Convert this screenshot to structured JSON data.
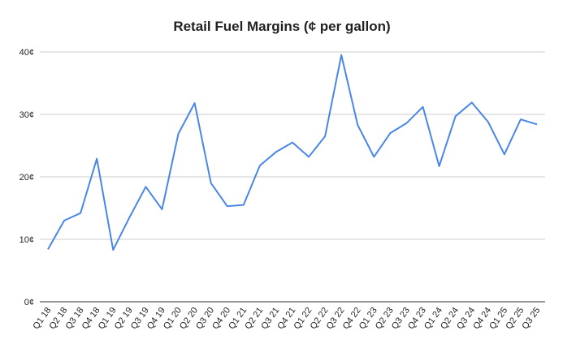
{
  "chart_data": {
    "type": "line",
    "title": "Retail Fuel Margins (¢ per gallon)",
    "categories": [
      "Q1 18",
      "Q2 18",
      "Q3 18",
      "Q4 18",
      "Q1 19",
      "Q2 19",
      "Q3 19",
      "Q4 19",
      "Q1 20",
      "Q2 20",
      "Q3 20",
      "Q4 20",
      "Q1 21",
      "Q2 21",
      "Q3 21",
      "Q4 21",
      "Q1 22",
      "Q2 22",
      "Q3 22",
      "Q4 22",
      "Q1 23",
      "Q2 23",
      "Q3 23",
      "Q4 23",
      "Q1 24",
      "Q2 24",
      "Q3 24",
      "Q4 24",
      "Q1 25",
      "Q2 25",
      "Q3 25"
    ],
    "values": [
      8.4,
      13.0,
      14.2,
      22.9,
      8.3,
      13.5,
      18.4,
      14.8,
      26.9,
      31.8,
      19.0,
      15.3,
      15.5,
      21.8,
      24.0,
      25.5,
      23.2,
      26.5,
      39.5,
      28.3,
      23.2,
      27.0,
      28.6,
      31.2,
      21.7,
      29.7,
      31.9,
      28.8,
      23.6,
      29.2,
      28.4
    ],
    "color": "#4a86e8",
    "ylim": [
      0,
      40
    ],
    "yticks": [
      {
        "value": 0,
        "label": "0¢"
      },
      {
        "value": 10,
        "label": "10¢"
      },
      {
        "value": 20,
        "label": "20¢"
      },
      {
        "value": 30,
        "label": "30¢"
      },
      {
        "value": 40,
        "label": "40¢"
      }
    ],
    "grid": true
  }
}
